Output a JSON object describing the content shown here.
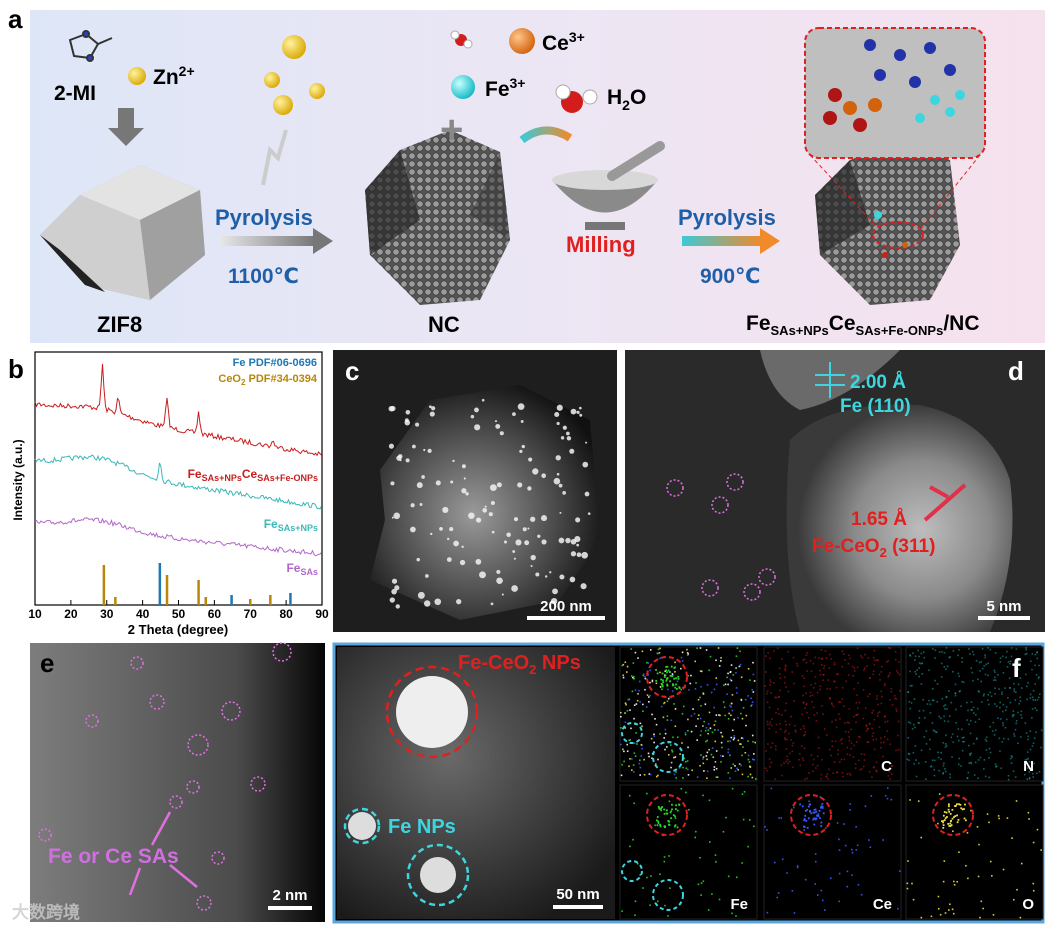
{
  "panel_a": {
    "label": "a",
    "precursor": "2-MI",
    "zinc": {
      "base": "Zn",
      "sup": "2+"
    },
    "zif": "ZIF8",
    "step1": {
      "process": "Pyrolysis",
      "temp": "1100℃"
    },
    "nc": "NC",
    "cerium": {
      "base": "Ce",
      "sup": "3+"
    },
    "iron": {
      "base": "Fe",
      "sup": "3+"
    },
    "water": {
      "base": "H",
      "sub": "2",
      "tail": "O"
    },
    "milling": "Milling",
    "step2": {
      "process": "Pyrolysis",
      "temp": "900℃"
    },
    "product": {
      "a": "Fe",
      "a_sub": "SAs+NPs",
      "b": "Ce",
      "b_sub": "SAs+Fe-ONPs",
      "tail": "/NC"
    }
  },
  "panel_b": {
    "label": "b",
    "ref_fe": "Fe PDF#06-0696",
    "ref_ceo2": {
      "base": "CeO",
      "sub": "2",
      "tail": " PDF#34-0394"
    },
    "y_label": "Intensity (a.u.)",
    "x_label": "2 Theta (degree)",
    "x_ticks": [
      10,
      20,
      30,
      40,
      50,
      60,
      70,
      80,
      90
    ],
    "curves": [
      {
        "a": "Fe",
        "a_sub": "SAs+NPs",
        "b": "Ce",
        "b_sub": "SAs+Fe-ONPs"
      },
      {
        "a": "Fe",
        "a_sub": "SAs+NPs"
      },
      {
        "a": "Fe",
        "a_sub": "SAs"
      }
    ]
  },
  "panel_c": {
    "label": "c",
    "scale": "200 nm"
  },
  "panel_d": {
    "label": "d",
    "fe_spacing": "2.00 Å",
    "fe_plane": "Fe (110)",
    "ceo2_spacing": "1.65 Å",
    "ceo2_plane": {
      "base": "Fe-CeO",
      "sub": "2",
      "tail": " (311)"
    },
    "scale": "5 nm"
  },
  "panel_e": {
    "label": "e",
    "annotation": "Fe or Ce SAs",
    "scale": "2 nm"
  },
  "panel_f": {
    "label": "f",
    "np_label": {
      "base": "Fe-CeO",
      "sub": "2",
      "tail": " NPs"
    },
    "fe_np_label": "Fe NPs",
    "scale": "50 nm",
    "maps": [
      "C",
      "N",
      "Fe",
      "Ce",
      "O"
    ]
  },
  "watermark": "大数跨境"
}
